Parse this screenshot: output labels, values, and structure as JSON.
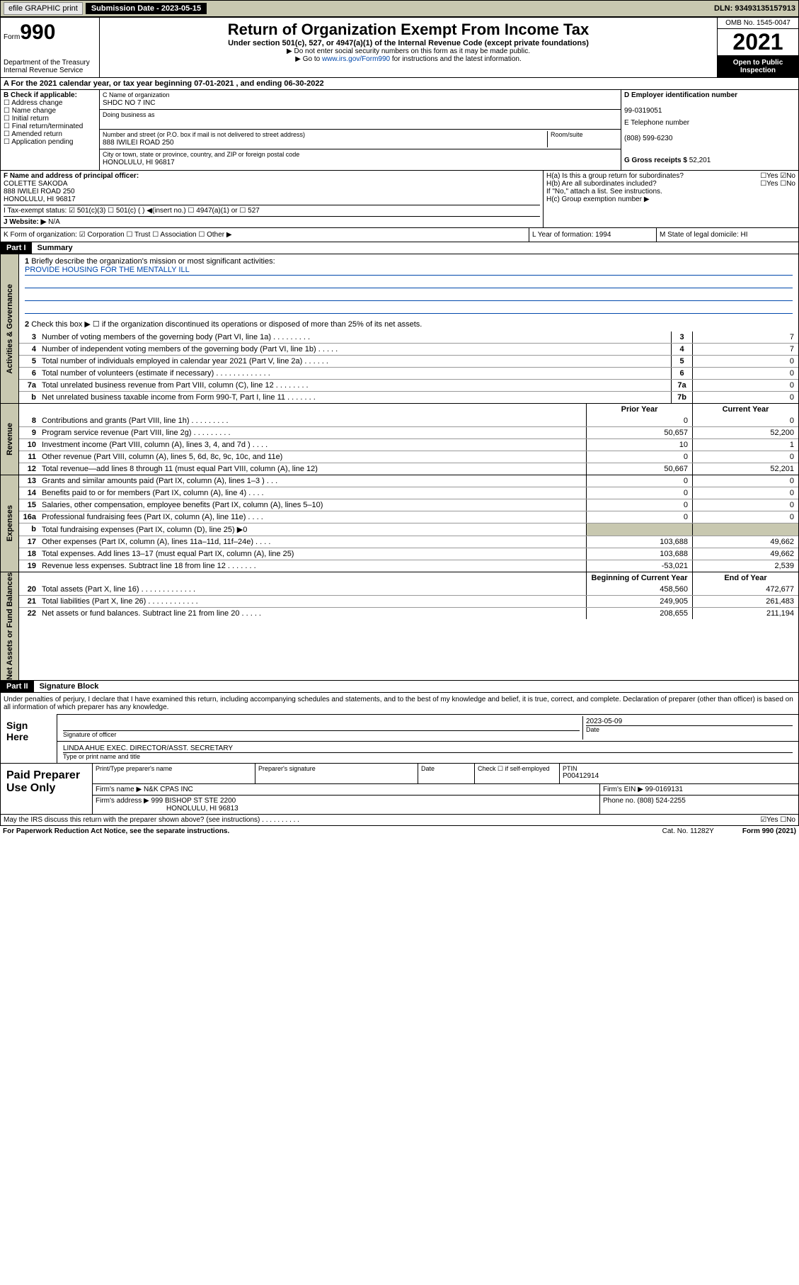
{
  "topbar": {
    "efile": "efile GRAPHIC print",
    "subdate_label": "Submission Date - ",
    "subdate": "2023-05-15",
    "dln_label": "DLN: ",
    "dln": "93493135157913"
  },
  "header": {
    "form_word": "Form",
    "form_num": "990",
    "dept": "Department of the Treasury",
    "irs": "Internal Revenue Service",
    "title": "Return of Organization Exempt From Income Tax",
    "sub1": "Under section 501(c), 527, or 4947(a)(1) of the Internal Revenue Code (except private foundations)",
    "sub2": "▶ Do not enter social security numbers on this form as it may be made public.",
    "sub3a": "▶ Go to ",
    "sub3link": "www.irs.gov/Form990",
    "sub3b": " for instructions and the latest information.",
    "omb": "OMB No. 1545-0047",
    "year": "2021",
    "open": "Open to Public Inspection"
  },
  "row_a": {
    "text": "A For the 2021 calendar year, or tax year beginning 07-01-2021   , and ending 06-30-2022"
  },
  "col_b": {
    "label": "B Check if applicable:",
    "opts": [
      "Address change",
      "Name change",
      "Initial return",
      "Final return/terminated",
      "Amended return",
      "Application pending"
    ]
  },
  "col_c": {
    "name_label": "C Name of organization",
    "name": "SHDC NO 7 INC",
    "dba_label": "Doing business as",
    "dba": "",
    "addr_label": "Number and street (or P.O. box if mail is not delivered to street address)",
    "room_label": "Room/suite",
    "addr": "888 IWILEI ROAD 250",
    "city_label": "City or town, state or province, country, and ZIP or foreign postal code",
    "city": "HONOLULU, HI  96817"
  },
  "col_d": {
    "ein_label": "D Employer identification number",
    "ein": "99-0319051",
    "tel_label": "E Telephone number",
    "tel": "(808) 599-6230",
    "gross_label": "G Gross receipts $ ",
    "gross": "52,201"
  },
  "row_f": {
    "label": "F  Name and address of principal officer:",
    "name": "COLETTE SAKODA",
    "addr1": "888 IWILEI ROAD 250",
    "addr2": "HONOLULU, HI  96817"
  },
  "row_h": {
    "ha": "H(a)  Is this a group return for subordinates?",
    "ha_yn": "☐Yes ☑No",
    "hb": "H(b)  Are all subordinates included?",
    "hb_yn": "☐Yes ☐No",
    "hb_note": "If \"No,\" attach a list. See instructions.",
    "hc": "H(c)  Group exemption number ▶"
  },
  "row_i": {
    "label": "I   Tax-exempt status:",
    "opts": "☑ 501(c)(3)   ☐ 501(c) (  ) ◀(insert no.)   ☐ 4947(a)(1) or  ☐ 527"
  },
  "row_j": {
    "label": "J   Website: ▶ ",
    "val": "N/A"
  },
  "row_k": "K Form of organization:  ☑ Corporation ☐ Trust ☐ Association ☐ Other ▶",
  "row_l": "L Year of formation: 1994",
  "row_m": "M State of legal domicile: HI",
  "part1": {
    "hdr": "Part I",
    "title": "Summary",
    "vtab_gov": "Activities & Governance",
    "vtab_rev": "Revenue",
    "vtab_exp": "Expenses",
    "vtab_net": "Net Assets or Fund Balances",
    "q1": "Briefly describe the organization's mission or most significant activities:",
    "q1_ans": "PROVIDE HOUSING FOR THE MENTALLY ILL",
    "q2": "Check this box ▶ ☐  if the organization discontinued its operations or disposed of more than 25% of its net assets.",
    "lines_gov": [
      {
        "n": "3",
        "d": "Number of voting members of the governing body (Part VI, line 1a)  .   .   .   .   .   .   .   .   .",
        "b": "3",
        "v": "7"
      },
      {
        "n": "4",
        "d": "Number of independent voting members of the governing body (Part VI, line 1b)  .   .   .   .   .",
        "b": "4",
        "v": "7"
      },
      {
        "n": "5",
        "d": "Total number of individuals employed in calendar year 2021 (Part V, line 2a)  .   .   .   .   .   .",
        "b": "5",
        "v": "0"
      },
      {
        "n": "6",
        "d": "Total number of volunteers (estimate if necessary)  .   .   .   .   .   .   .   .   .   .   .   .   .",
        "b": "6",
        "v": "0"
      },
      {
        "n": "7a",
        "d": "Total unrelated business revenue from Part VIII, column (C), line 12  .   .   .   .   .   .   .   .",
        "b": "7a",
        "v": "0"
      },
      {
        "n": "b",
        "d": "Net unrelated business taxable income from Form 990-T, Part I, line 11  .   .   .   .   .   .   .",
        "b": "7b",
        "v": "0"
      }
    ],
    "hdr_prior": "Prior Year",
    "hdr_curr": "Current Year",
    "lines_rev": [
      {
        "n": "8",
        "d": "Contributions and grants (Part VIII, line 1h)  .   .   .   .   .   .   .   .   .",
        "p": "0",
        "c": "0"
      },
      {
        "n": "9",
        "d": "Program service revenue (Part VIII, line 2g)  .   .   .   .   .   .   .   .   .",
        "p": "50,657",
        "c": "52,200"
      },
      {
        "n": "10",
        "d": "Investment income (Part VIII, column (A), lines 3, 4, and 7d )  .   .   .   .",
        "p": "10",
        "c": "1"
      },
      {
        "n": "11",
        "d": "Other revenue (Part VIII, column (A), lines 5, 6d, 8c, 9c, 10c, and 11e)",
        "p": "0",
        "c": "0"
      },
      {
        "n": "12",
        "d": "Total revenue—add lines 8 through 11 (must equal Part VIII, column (A), line 12)",
        "p": "50,667",
        "c": "52,201"
      }
    ],
    "lines_exp": [
      {
        "n": "13",
        "d": "Grants and similar amounts paid (Part IX, column (A), lines 1–3 )  .   .   .",
        "p": "0",
        "c": "0"
      },
      {
        "n": "14",
        "d": "Benefits paid to or for members (Part IX, column (A), line 4)  .   .   .   .",
        "p": "0",
        "c": "0"
      },
      {
        "n": "15",
        "d": "Salaries, other compensation, employee benefits (Part IX, column (A), lines 5–10)",
        "p": "0",
        "c": "0"
      },
      {
        "n": "16a",
        "d": "Professional fundraising fees (Part IX, column (A), line 11e)  .   .   .   .",
        "p": "0",
        "c": "0"
      },
      {
        "n": "b",
        "d": "Total fundraising expenses (Part IX, column (D), line 25) ▶0",
        "p": "",
        "c": "",
        "gray": true
      },
      {
        "n": "17",
        "d": "Other expenses (Part IX, column (A), lines 11a–11d, 11f–24e)  .   .   .   .",
        "p": "103,688",
        "c": "49,662"
      },
      {
        "n": "18",
        "d": "Total expenses. Add lines 13–17 (must equal Part IX, column (A), line 25)",
        "p": "103,688",
        "c": "49,662"
      },
      {
        "n": "19",
        "d": "Revenue less expenses. Subtract line 18 from line 12  .   .   .   .   .   .   .",
        "p": "-53,021",
        "c": "2,539"
      }
    ],
    "hdr_begin": "Beginning of Current Year",
    "hdr_end": "End of Year",
    "lines_net": [
      {
        "n": "20",
        "d": "Total assets (Part X, line 16)  .   .   .   .   .   .   .   .   .   .   .   .   .",
        "p": "458,560",
        "c": "472,677"
      },
      {
        "n": "21",
        "d": "Total liabilities (Part X, line 26)  .   .   .   .   .   .   .   .   .   .   .   .",
        "p": "249,905",
        "c": "261,483"
      },
      {
        "n": "22",
        "d": "Net assets or fund balances. Subtract line 21 from line 20  .   .   .   .   .",
        "p": "208,655",
        "c": "211,194"
      }
    ]
  },
  "part2": {
    "hdr": "Part II",
    "title": "Signature Block",
    "decl": "Under penalties of perjury, I declare that I have examined this return, including accompanying schedules and statements, and to the best of my knowledge and belief, it is true, correct, and complete. Declaration of preparer (other than officer) is based on all information of which preparer has any knowledge.",
    "sign_here": "Sign Here",
    "sig_officer": "Signature of officer",
    "sig_date": "2023-05-09",
    "sig_date_label": "Date",
    "sig_name": "LINDA AHUE  EXEC. DIRECTOR/ASST. SECRETARY",
    "sig_name_label": "Type or print name and title",
    "paid": "Paid Preparer Use Only",
    "prep_name_label": "Print/Type preparer's name",
    "prep_sig_label": "Preparer's signature",
    "prep_date_label": "Date",
    "prep_check": "Check ☐ if self-employed",
    "ptin_label": "PTIN",
    "ptin": "P00412914",
    "firm_name_label": "Firm's name     ▶ ",
    "firm_name": "N&K CPAS INC",
    "firm_ein_label": "Firm's EIN ▶ ",
    "firm_ein": "99-0169131",
    "firm_addr_label": "Firm's address ▶ ",
    "firm_addr1": "999 BISHOP ST STE 2200",
    "firm_addr2": "HONOLULU, HI  96813",
    "firm_phone_label": "Phone no. ",
    "firm_phone": "(808) 524-2255",
    "may_discuss": "May the IRS discuss this return with the preparer shown above? (see instructions)  .   .   .   .   .   .   .   .   .   .",
    "may_yn": "☑Yes  ☐No"
  },
  "footer": {
    "pra": "For Paperwork Reduction Act Notice, see the separate instructions.",
    "catno": "Cat. No. 11282Y",
    "formno": "Form 990 (2021)"
  },
  "colors": {
    "tan": "#c8c8b0",
    "link": "#0047ab"
  }
}
